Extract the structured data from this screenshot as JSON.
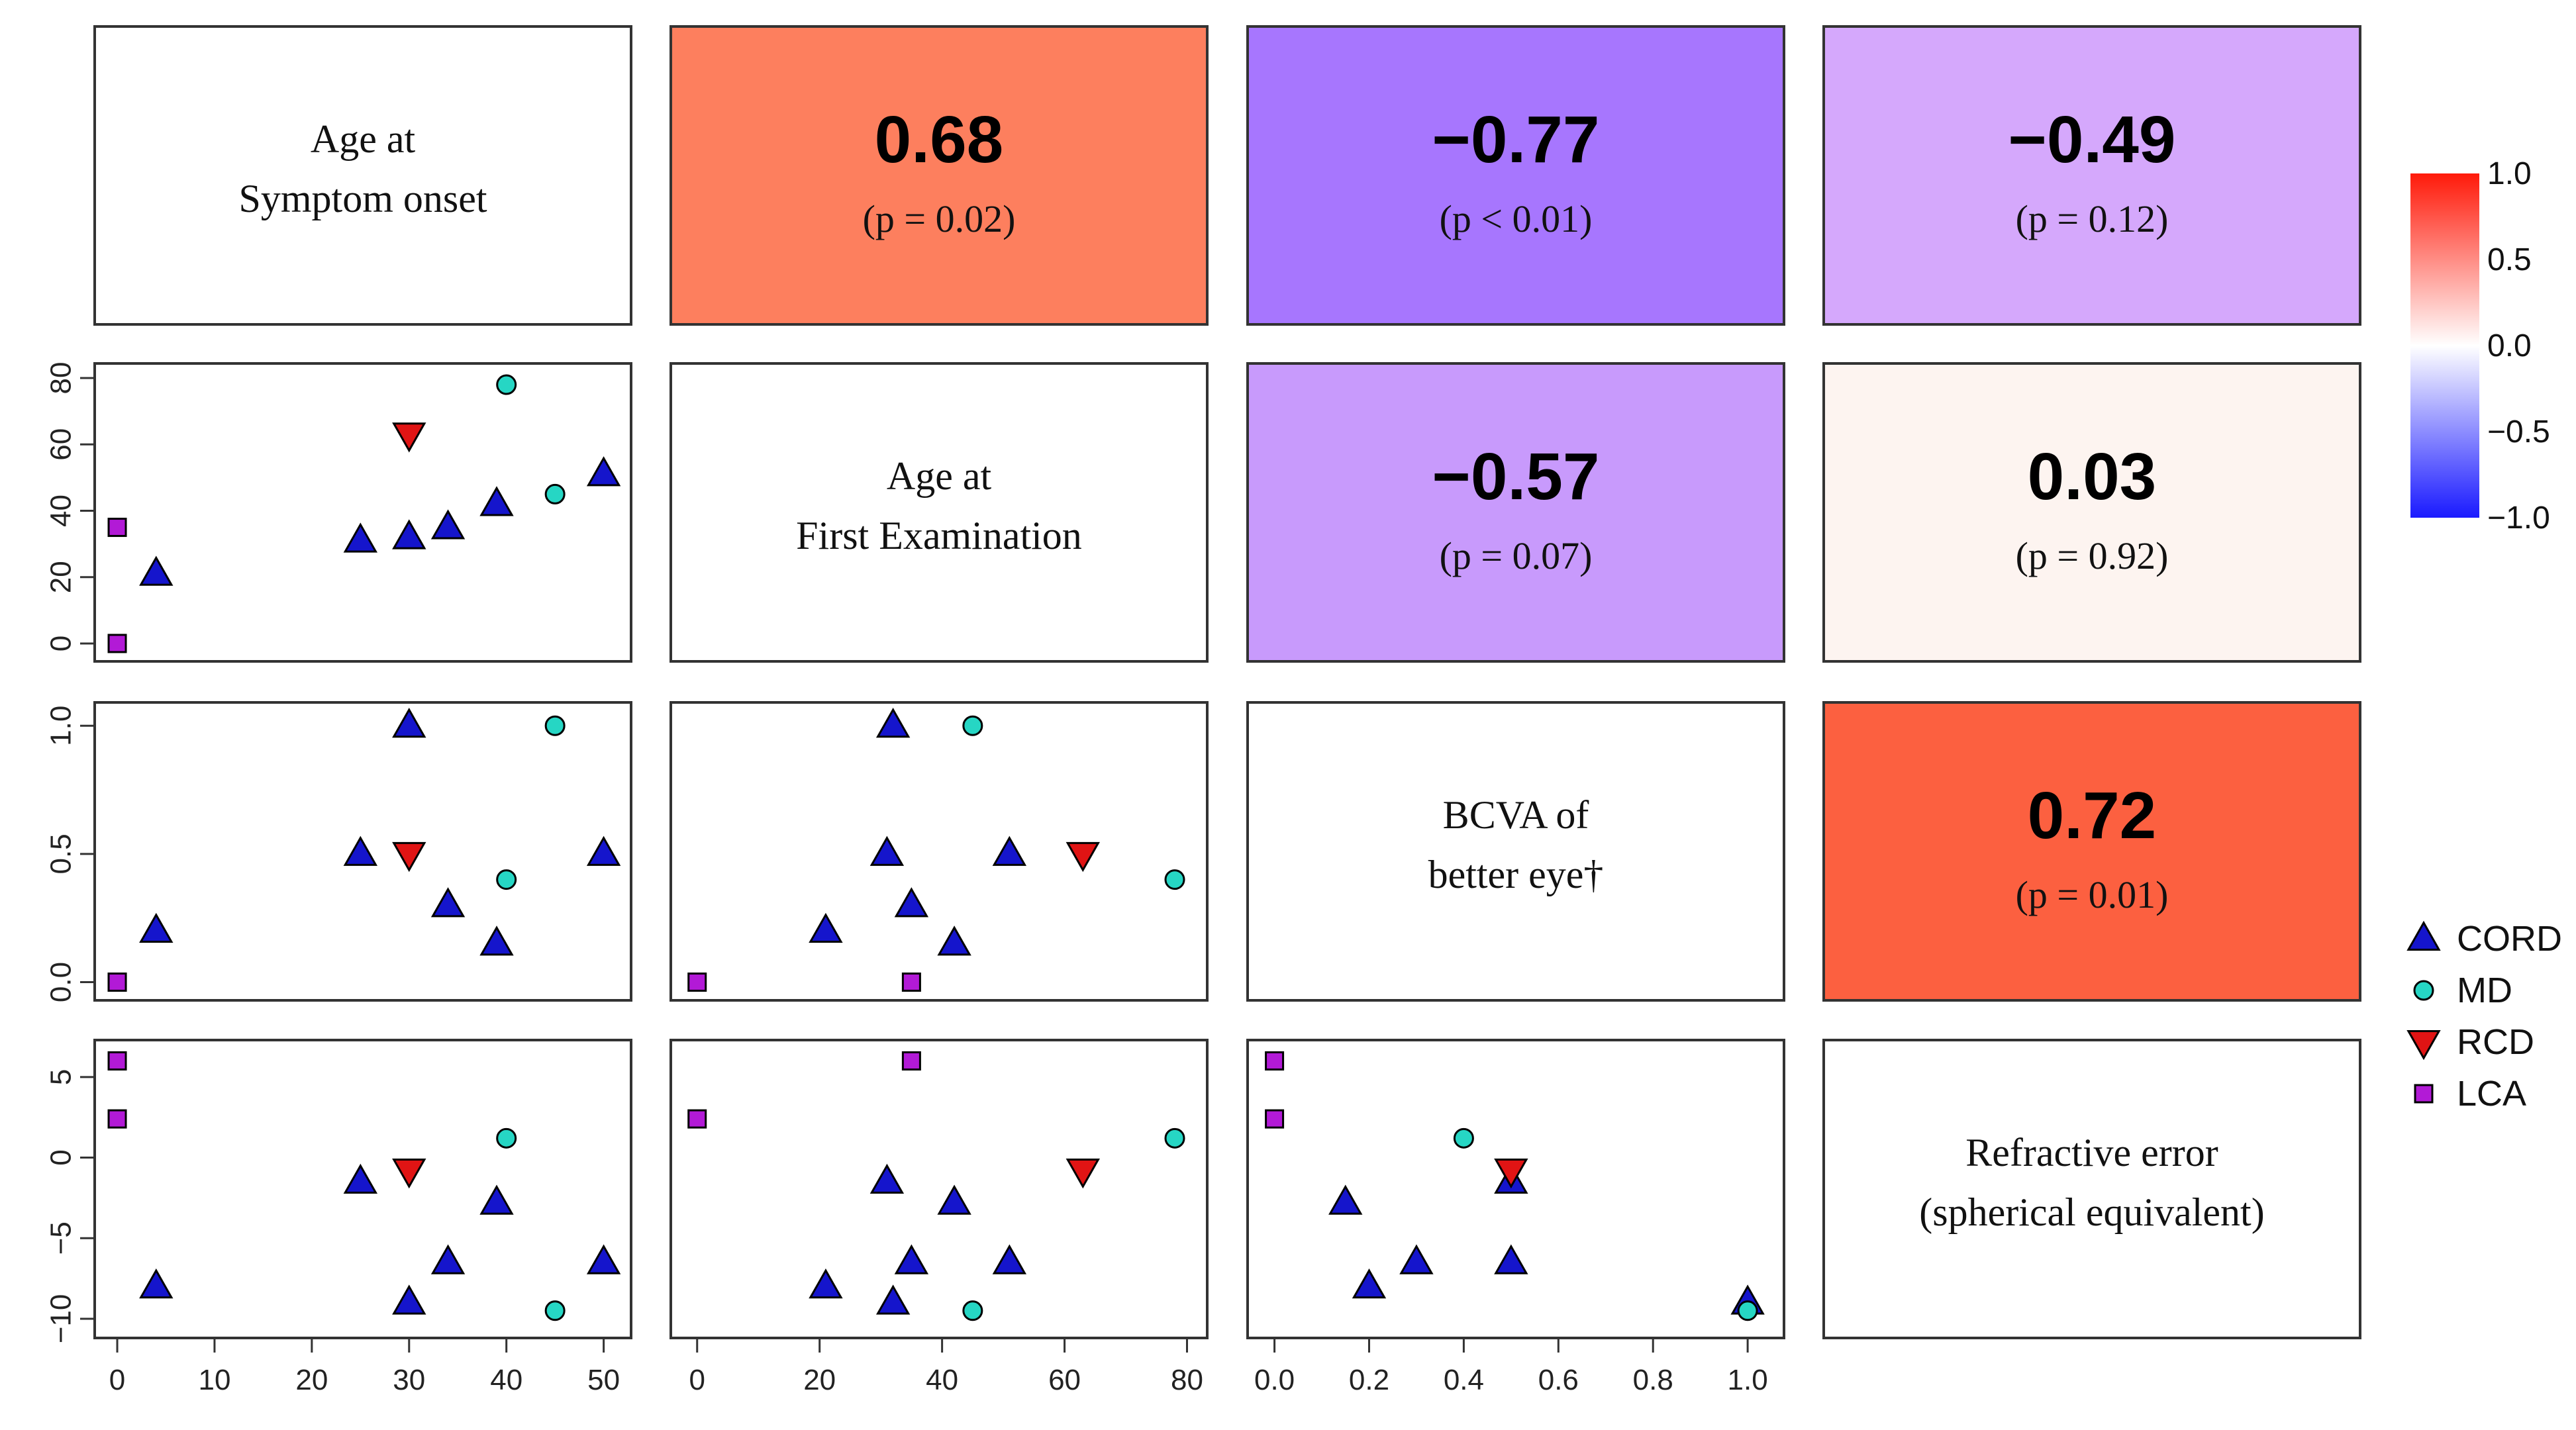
{
  "chart_data": {
    "type": "scatter",
    "title": "",
    "variables": [
      {
        "key": "onset",
        "label_lines": [
          "Age at",
          "Symptom onset"
        ],
        "ticks": [
          0,
          10,
          20,
          30,
          40,
          50
        ],
        "tick_labels": [
          "0",
          "10",
          "20",
          "30",
          "40",
          "50"
        ],
        "range": [
          -1.5,
          52
        ]
      },
      {
        "key": "exam",
        "label_lines": [
          "Age at",
          "First Examination"
        ],
        "ticks": [
          0,
          20,
          40,
          60,
          80
        ],
        "tick_labels": [
          "0",
          "20",
          "40",
          "60",
          "80"
        ],
        "range": [
          -3,
          82
        ]
      },
      {
        "key": "bcva",
        "label_lines": [
          "BCVA of",
          "better eye†"
        ],
        "ticks": [
          0,
          0.2,
          0.4,
          0.6,
          0.8,
          1.0
        ],
        "tick_labels": [
          "0.0",
          "0.2",
          "0.4",
          "0.6",
          "0.8",
          "1.0"
        ],
        "ticks_y": [
          0,
          0.5,
          1.0
        ],
        "tick_labels_y": [
          "0.0",
          "0.5",
          "1.0"
        ],
        "range": [
          -0.04,
          1.06
        ]
      },
      {
        "key": "refr",
        "label_lines": [
          "Refractive error",
          "(spherical equivalent)"
        ],
        "ticks": [
          -10,
          -5,
          0,
          5
        ],
        "tick_labels": [
          "−10",
          "−5",
          "0",
          "5"
        ],
        "range": [
          -10.7,
          6.8
        ]
      }
    ],
    "series": [
      {
        "name": "CORD",
        "color": "#1515cc",
        "marker": "triangle-up",
        "points": [
          {
            "onset": 4,
            "exam": 21,
            "bcva": 0.2,
            "refr": -8
          },
          {
            "onset": 25,
            "exam": 31,
            "bcva": 0.5,
            "refr": -1.5
          },
          {
            "onset": 30,
            "exam": 32,
            "bcva": 1.0,
            "refr": -9
          },
          {
            "onset": 34,
            "exam": 35,
            "bcva": 0.3,
            "refr": -6.5
          },
          {
            "onset": 39,
            "exam": 42,
            "bcva": 0.15,
            "refr": -2.8
          },
          {
            "onset": 50,
            "exam": 51,
            "bcva": 0.5,
            "refr": -6.5
          }
        ]
      },
      {
        "name": "MD",
        "color": "#26d6c4",
        "marker": "circle",
        "points": [
          {
            "onset": 40,
            "exam": 78,
            "bcva": 0.4,
            "refr": 1.2
          },
          {
            "onset": 45,
            "exam": 45,
            "bcva": 1.0,
            "refr": -9.5
          }
        ]
      },
      {
        "name": "RCD",
        "color": "#e01414",
        "marker": "triangle-down",
        "points": [
          {
            "onset": 30,
            "exam": 63,
            "bcva": 0.5,
            "refr": -0.8
          }
        ]
      },
      {
        "name": "LCA",
        "color": "#b21ad6",
        "marker": "square",
        "points": [
          {
            "onset": 0,
            "exam": 0,
            "bcva": 0.0,
            "refr": 2.4
          },
          {
            "onset": 0,
            "exam": 35,
            "bcva": 0.0,
            "refr": 6
          }
        ]
      }
    ],
    "correlations": [
      {
        "row": 0,
        "col": 1,
        "r": 0.68,
        "r_label": "0.68",
        "p_label": "(p = 0.02)",
        "color": "#fd7f5e"
      },
      {
        "row": 0,
        "col": 2,
        "r": -0.77,
        "r_label": "−0.77",
        "p_label": "(p < 0.01)",
        "color": "#a776fe"
      },
      {
        "row": 0,
        "col": 3,
        "r": -0.49,
        "r_label": "−0.49",
        "p_label": "(p = 0.12)",
        "color": "#d5a8fc"
      },
      {
        "row": 1,
        "col": 2,
        "r": -0.57,
        "r_label": "−0.57",
        "p_label": "(p = 0.07)",
        "color": "#c89afc"
      },
      {
        "row": 1,
        "col": 3,
        "r": 0.03,
        "r_label": "0.03",
        "p_label": "(p = 0.92)",
        "color": "#fdf4f0"
      },
      {
        "row": 2,
        "col": 3,
        "r": 0.72,
        "r_label": "0.72",
        "p_label": "(p = 0.01)",
        "color": "#fc6040"
      }
    ],
    "colorbar": {
      "range": [
        -1.0,
        1.0
      ],
      "tick_values": [
        1.0,
        0.5,
        0.0,
        -0.5,
        -1.0
      ],
      "tick_labels": [
        "1.0",
        "0.5",
        "0.0",
        "−0.5",
        "−1.0"
      ],
      "colors": {
        "max": "#ff1a0a",
        "mid": "#ffffff",
        "min": "#1a1aff"
      }
    },
    "legend": {
      "position": "right",
      "entries": [
        "CORD",
        "MD",
        "RCD",
        "LCA"
      ]
    },
    "grid": false
  }
}
